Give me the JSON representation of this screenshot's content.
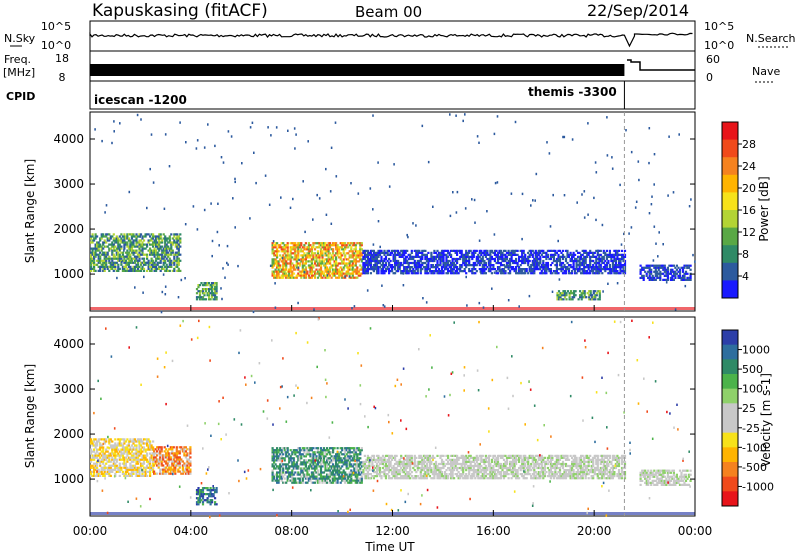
{
  "header": {
    "station": "Kapuskasing (fitACF)",
    "beam": "Beam 00",
    "date": "22/Sep/2014"
  },
  "params": {
    "nsky_label": "N.Sky",
    "nsearch_label": "N.Search",
    "freq_label_line1": "Freq.",
    "freq_label_line2": "[MHz]",
    "nave_label": "Nave",
    "cpid_label": "CPID",
    "nsky_ticks": [
      "10^5",
      "10^0"
    ],
    "nsearch_ticks": [
      "10^5",
      "10^0"
    ],
    "freq_ticks": [
      "18",
      "8"
    ],
    "nave_ticks": [
      "60",
      "0"
    ],
    "cpid_blocks": [
      {
        "label": "icescan -1200",
        "start_hour": 0,
        "end_hour": 21.2
      },
      {
        "label": "themis -3300",
        "start_hour": 21.2,
        "end_hour": 24
      }
    ]
  },
  "chart_data": [
    {
      "type": "heatmap",
      "name": "power",
      "ylabel": "Slant Range [km]",
      "xlabel": "Time UT",
      "x_range_hours": [
        0,
        24
      ],
      "ylim": [
        180,
        4600
      ],
      "yticks": [
        1000,
        2000,
        3000,
        4000
      ],
      "xticks": [
        "00:00",
        "04:00",
        "08:00",
        "12:00",
        "16:00",
        "20:00",
        "00:00"
      ],
      "colorbar": {
        "label": "Power [dB]",
        "ticks": [
          "28",
          "24",
          "20",
          "16",
          "12",
          "8",
          "4"
        ],
        "colors_top_to_bottom": [
          "#e8141a",
          "#f04a1b",
          "#f5821f",
          "#ffb400",
          "#f7e21a",
          "#b3d435",
          "#59a845",
          "#2f8a66",
          "#2c5a9e",
          "#1a1aff"
        ]
      },
      "echo_regions": [
        {
          "start_hour": 0.0,
          "end_hour": 3.6,
          "range_min_km": 1050,
          "range_max_km": 1900,
          "intensity": "medium"
        },
        {
          "start_hour": 4.2,
          "end_hour": 5.0,
          "range_min_km": 420,
          "range_max_km": 800,
          "intensity": "medium"
        },
        {
          "start_hour": 7.2,
          "end_hour": 10.8,
          "range_min_km": 900,
          "range_max_km": 1700,
          "intensity": "high"
        },
        {
          "start_hour": 10.8,
          "end_hour": 21.2,
          "range_min_km": 1000,
          "range_max_km": 1500,
          "intensity": "low"
        },
        {
          "start_hour": 18.5,
          "end_hour": 20.2,
          "range_min_km": 420,
          "range_max_km": 620,
          "intensity": "medium"
        },
        {
          "start_hour": 21.8,
          "end_hour": 23.8,
          "range_min_km": 850,
          "range_max_km": 1200,
          "intensity": "low"
        }
      ]
    },
    {
      "type": "heatmap",
      "name": "velocity",
      "ylabel": "Slant Range [km]",
      "xlabel": "Time UT",
      "x_range_hours": [
        0,
        24
      ],
      "ylim": [
        180,
        4600
      ],
      "yticks": [
        1000,
        2000,
        3000,
        4000
      ],
      "xticks": [
        "00:00",
        "04:00",
        "08:00",
        "12:00",
        "16:00",
        "20:00",
        "00:00"
      ],
      "colorbar": {
        "label": "Velocity [m s-1]",
        "ticks": [
          "1000",
          "500",
          "100",
          "25",
          "-25",
          "-100",
          "-500",
          "-1000"
        ],
        "colors_top_to_bottom": [
          "#2c3ea8",
          "#2e6e9e",
          "#2f8a66",
          "#4cb34a",
          "#8fd16a",
          "#c8c8c8",
          "#c8c8c8",
          "#f7e21a",
          "#ffb400",
          "#f5821f",
          "#f04a1b",
          "#e8141a"
        ]
      },
      "echo_regions": [
        {
          "start_hour": 0.0,
          "end_hour": 2.5,
          "range_min_km": 1050,
          "range_max_km": 1900,
          "intensity": "grey-yellow"
        },
        {
          "start_hour": 2.5,
          "end_hour": 4.0,
          "range_min_km": 1100,
          "range_max_km": 1700,
          "intensity": "orange-negative"
        },
        {
          "start_hour": 4.2,
          "end_hour": 5.0,
          "range_min_km": 420,
          "range_max_km": 800,
          "intensity": "blue-green"
        },
        {
          "start_hour": 7.2,
          "end_hour": 10.8,
          "range_min_km": 900,
          "range_max_km": 1700,
          "intensity": "green-positive"
        },
        {
          "start_hour": 10.8,
          "end_hour": 21.2,
          "range_min_km": 1000,
          "range_max_km": 1500,
          "intensity": "grey-low"
        },
        {
          "start_hour": 21.8,
          "end_hour": 23.8,
          "range_min_km": 850,
          "range_max_km": 1200,
          "intensity": "grey-low"
        }
      ]
    }
  ]
}
